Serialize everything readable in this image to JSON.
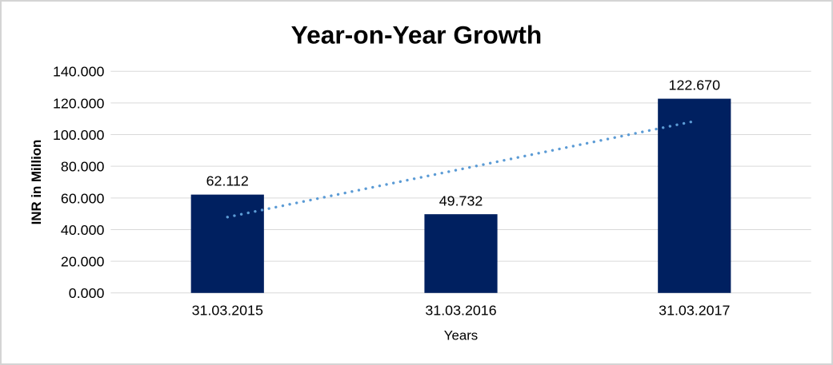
{
  "window": {
    "background_color": "#ffffff",
    "border_color": "#d4d4d4"
  },
  "chart_data": {
    "type": "bar",
    "title": "Year-on-Year Growth",
    "xlabel": "Years",
    "ylabel": "INR in Million",
    "categories": [
      "31.03.2015",
      "31.03.2016",
      "31.03.2017"
    ],
    "values": [
      62.112,
      49.732,
      122.67
    ],
    "data_labels": [
      "62.112",
      "49.732",
      "122.670"
    ],
    "ylim": [
      0,
      140
    ],
    "ytick_step": 20,
    "ytick_labels": [
      "0.000",
      "20.000",
      "40.000",
      "60.000",
      "80.000",
      "100.000",
      "120.000",
      "140.000"
    ],
    "grid": true,
    "legend": "none",
    "colors": {
      "bar": "#002060",
      "trendline": "#5b9bd5",
      "gridline": "#d9d9d9",
      "text": "#000000"
    },
    "trendline": {
      "type": "linear",
      "style": "dotted"
    }
  }
}
